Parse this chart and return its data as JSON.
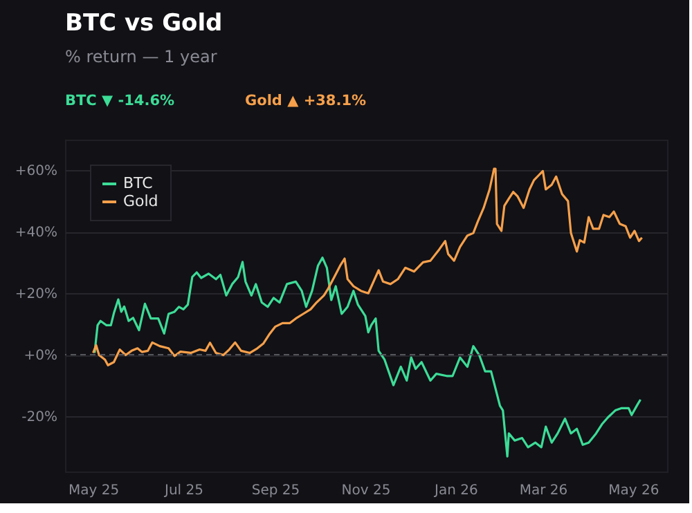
{
  "chart_data": {
    "type": "line",
    "title": "BTC vs Gold",
    "subtitle": "% return — 1 year",
    "annotations": [
      "BTC  ▼ -14.6%",
      "Gold  ▲ +38.1%"
    ],
    "series": [
      {
        "name": "BTC",
        "color": "#3ddc97",
        "x": [
          "2025-05-02",
          "2025-05-04",
          "2025-05-06",
          "2025-05-10",
          "2025-05-13",
          "2025-05-15",
          "2025-05-18",
          "2025-05-20",
          "2025-05-22",
          "2025-05-25",
          "2025-05-28",
          "2025-06-01",
          "2025-06-05",
          "2025-06-09",
          "2025-06-14",
          "2025-06-18",
          "2025-06-21",
          "2025-06-25",
          "2025-06-28",
          "2025-07-01",
          "2025-07-04",
          "2025-07-07",
          "2025-07-10",
          "2025-07-13",
          "2025-07-18",
          "2025-07-23",
          "2025-07-26",
          "2025-07-30",
          "2025-08-03",
          "2025-08-07",
          "2025-08-10",
          "2025-08-12",
          "2025-08-16",
          "2025-08-19",
          "2025-08-23",
          "2025-08-27",
          "2025-08-31",
          "2025-09-04",
          "2025-09-09",
          "2025-09-15",
          "2025-09-19",
          "2025-09-22",
          "2025-09-26",
          "2025-09-30",
          "2025-10-03",
          "2025-10-06",
          "2025-10-09",
          "2025-10-12",
          "2025-10-16",
          "2025-10-20",
          "2025-10-24",
          "2025-10-27",
          "2025-11-01",
          "2025-11-03",
          "2025-11-05",
          "2025-11-08",
          "2025-11-10",
          "2025-11-14",
          "2025-11-20",
          "2025-11-25",
          "2025-11-29",
          "2025-12-02",
          "2025-12-05",
          "2025-12-09",
          "2025-12-15",
          "2025-12-19",
          "2025-12-26",
          "2025-12-30",
          "2026-01-04",
          "2026-01-09",
          "2026-01-13",
          "2026-01-17",
          "2026-01-21",
          "2026-01-25",
          "2026-01-27",
          "2026-01-31",
          "2026-02-02",
          "2026-02-05",
          "2026-02-06",
          "2026-02-10",
          "2026-02-15",
          "2026-02-19",
          "2026-02-24",
          "2026-02-28",
          "2026-03-03",
          "2026-03-07",
          "2026-03-11",
          "2026-03-16",
          "2026-03-20",
          "2026-03-24",
          "2026-03-28",
          "2026-04-01",
          "2026-04-06",
          "2026-04-10",
          "2026-04-14",
          "2026-04-19",
          "2026-04-23",
          "2026-04-28",
          "2026-04-30",
          "2026-05-04",
          "2026-05-06"
        ],
        "values": [
          0.6,
          9.6,
          11,
          9.6,
          9.6,
          13.5,
          18,
          14,
          15.7,
          11,
          12,
          8,
          16.6,
          11.8,
          11.8,
          6.9,
          13.3,
          14,
          15.6,
          14.8,
          16.3,
          25.3,
          26.8,
          25,
          26.4,
          24.6,
          26,
          19.3,
          23,
          25.3,
          30.2,
          23.8,
          19.3,
          23,
          17,
          15.6,
          18.5,
          17,
          23,
          23.8,
          20.8,
          15.6,
          20.8,
          29,
          31.6,
          28.3,
          17.8,
          22.3,
          13.3,
          15.6,
          20.8,
          16.3,
          12.6,
          7.3,
          9.6,
          11.8,
          1.3,
          -1.6,
          -9.9,
          -3.9,
          -8.4,
          -0.9,
          -4.6,
          -2.4,
          -8.4,
          -6.2,
          -6.9,
          -6.9,
          -0.9,
          -3.9,
          2.8,
          -0.1,
          -5.4,
          -5.4,
          -9.1,
          -16.6,
          -18.1,
          -33.1,
          -25.6,
          -27.9,
          -27.1,
          -30.1,
          -28.6,
          -30.1,
          -23.4,
          -28.6,
          -25.6,
          -20.8,
          -25.6,
          -24.1,
          -29.3,
          -28.6,
          -25.6,
          -22.6,
          -20.4,
          -18.1,
          -17.4,
          -17.4,
          -19.6,
          -16.2,
          -14.6
        ]
      },
      {
        "name": "Gold",
        "color": "#f7a04b",
        "x": [
          "2025-05-01",
          "2025-05-03",
          "2025-05-05",
          "2025-05-09",
          "2025-05-11",
          "2025-05-15",
          "2025-05-19",
          "2025-05-23",
          "2025-05-27",
          "2025-05-31",
          "2025-06-03",
          "2025-06-07",
          "2025-06-10",
          "2025-06-15",
          "2025-06-21",
          "2025-06-25",
          "2025-06-29",
          "2025-07-06",
          "2025-07-12",
          "2025-07-16",
          "2025-07-19",
          "2025-07-23",
          "2025-07-28",
          "2025-08-01",
          "2025-08-05",
          "2025-08-09",
          "2025-08-15",
          "2025-08-20",
          "2025-08-24",
          "2025-08-28",
          "2025-09-01",
          "2025-09-06",
          "2025-09-11",
          "2025-09-15",
          "2025-09-20",
          "2025-09-25",
          "2025-09-29",
          "2025-10-04",
          "2025-10-07",
          "2025-10-11",
          "2025-10-15",
          "2025-10-18",
          "2025-10-20",
          "2025-10-24",
          "2025-10-29",
          "2025-11-03",
          "2025-11-10",
          "2025-11-13",
          "2025-11-18",
          "2025-11-23",
          "2025-11-28",
          "2025-12-04",
          "2025-12-10",
          "2025-12-15",
          "2025-12-21",
          "2025-12-25",
          "2025-12-27",
          "2025-12-31",
          "2026-01-04",
          "2026-01-09",
          "2026-01-13",
          "2026-01-16",
          "2026-01-20",
          "2026-01-24",
          "2026-01-27",
          "2026-01-28",
          "2026-01-29",
          "2026-02-01",
          "2026-02-03",
          "2026-02-06",
          "2026-02-09",
          "2026-02-12",
          "2026-02-16",
          "2026-02-20",
          "2026-02-23",
          "2026-02-26",
          "2026-03-01",
          "2026-03-03",
          "2026-03-07",
          "2026-03-10",
          "2026-03-14",
          "2026-03-18",
          "2026-03-20",
          "2026-03-24",
          "2026-03-26",
          "2026-03-29",
          "2026-04-01",
          "2026-04-04",
          "2026-04-08",
          "2026-04-11",
          "2026-04-15",
          "2026-04-18",
          "2026-04-22",
          "2026-04-26",
          "2026-04-29",
          "2026-05-02",
          "2026-05-05",
          "2026-05-07"
        ],
        "values": [
          0.6,
          3.1,
          -0.1,
          -1.6,
          -3.4,
          -2.4,
          1.7,
          -0.1,
          1.3,
          2.1,
          0.9,
          1.3,
          4,
          2.8,
          2.1,
          -0.4,
          1,
          0.6,
          1.7,
          1.3,
          3.9,
          0.6,
          -0.1,
          1.7,
          4,
          1.3,
          0.6,
          2.1,
          3.6,
          6.6,
          9.1,
          10.3,
          10.3,
          11.8,
          13.3,
          14.8,
          17,
          19.3,
          21.6,
          25.3,
          29,
          31.3,
          24.6,
          22.3,
          20.8,
          20,
          27.5,
          23.8,
          23,
          24.6,
          28.3,
          27.1,
          30.1,
          30.6,
          34.3,
          37,
          32.8,
          30.6,
          35.1,
          38.8,
          39.6,
          43.3,
          47.8,
          53.8,
          60.5,
          60.5,
          42.6,
          40.3,
          48.5,
          50.8,
          53,
          51.5,
          47.8,
          53.8,
          56.8,
          58.3,
          59.8,
          53.8,
          55.3,
          58,
          52.3,
          50,
          39.6,
          33.6,
          37.3,
          36.5,
          44.8,
          41,
          41,
          45.5,
          44.8,
          46.6,
          42.6,
          41.8,
          38.1,
          40.3,
          37,
          38.1
        ]
      }
    ],
    "xlim": [
      "2025-04-12",
      "2026-05-24"
    ],
    "xticks": [
      {
        "value": "2025-05-01",
        "label": "May 25"
      },
      {
        "value": "2025-07-01",
        "label": "Jul 25"
      },
      {
        "value": "2025-09-01",
        "label": "Sep 25"
      },
      {
        "value": "2025-11-01",
        "label": "Nov 25"
      },
      {
        "value": "2026-01-01",
        "label": "Jan 26"
      },
      {
        "value": "2026-03-01",
        "label": "Mar 26"
      },
      {
        "value": "2026-05-01",
        "label": "May 26"
      }
    ],
    "ylim": [
      -38,
      70
    ],
    "yticks": [
      {
        "value": -20,
        "label": "-20%"
      },
      {
        "value": 0,
        "label": "+0%"
      },
      {
        "value": 20,
        "label": "+20%"
      },
      {
        "value": 40,
        "label": "+40%"
      },
      {
        "value": 60,
        "label": "+60%"
      }
    ],
    "ref_lines": [
      {
        "axis": "y",
        "value": 0,
        "color": "#55555c",
        "line_style": "dashed"
      }
    ],
    "grid": "y",
    "legend": "top left",
    "marker": "none",
    "line_style": "solid"
  }
}
